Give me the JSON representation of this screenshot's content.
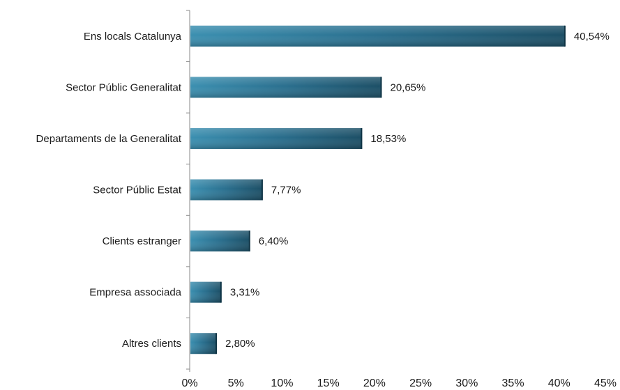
{
  "chart_data": {
    "type": "bar",
    "orientation": "horizontal",
    "categories": [
      "Ens locals Catalunya",
      "Sector Públic Generalitat",
      "Departaments de la Generalitat",
      "Sector Públic Estat",
      "Clients estranger",
      "Empresa associada",
      "Altres clients"
    ],
    "values": [
      40.54,
      20.65,
      18.53,
      7.77,
      6.4,
      3.31,
      2.8
    ],
    "value_labels": [
      "40,54%",
      "20,65%",
      "18,53%",
      "7,77%",
      "6,40%",
      "3,31%",
      "2,80%"
    ],
    "x_ticks": [
      0,
      5,
      10,
      15,
      20,
      25,
      30,
      35,
      40,
      45
    ],
    "x_tick_labels": [
      "0%",
      "5%",
      "10%",
      "15%",
      "20%",
      "25%",
      "30%",
      "35%",
      "40%",
      "45%"
    ],
    "xlim": [
      0,
      45
    ],
    "grid": false,
    "legend": "none",
    "title": "",
    "xlabel": "",
    "ylabel": "",
    "colors": {
      "bar_dark": "#1c4f66",
      "bar_light": "#3b8fb0",
      "axis": "#8a8a8a",
      "text": "#1a1a1a"
    }
  }
}
